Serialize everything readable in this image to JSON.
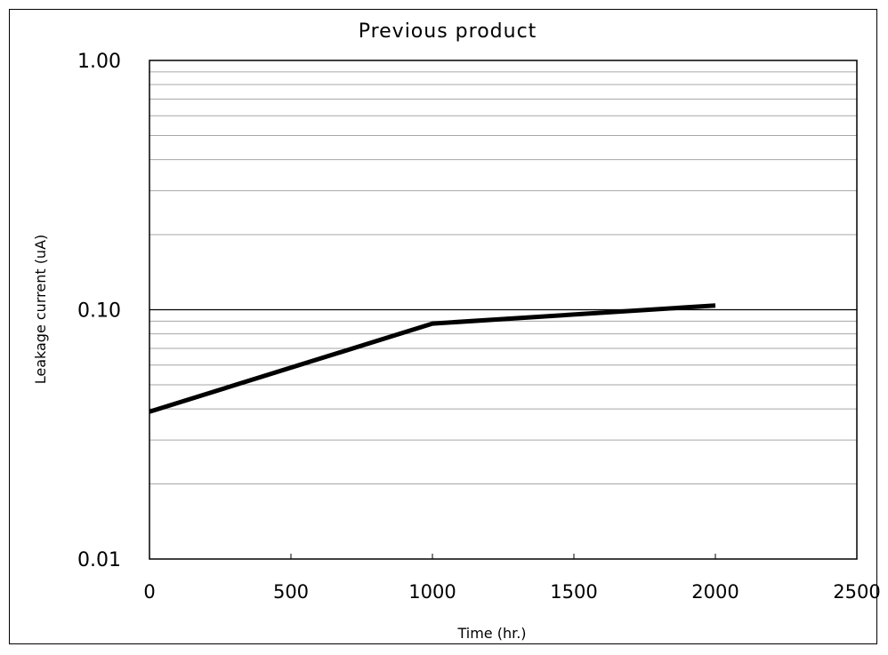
{
  "chart_data": {
    "type": "line",
    "title": "Previous product",
    "xlabel": "Time (hr.)",
    "ylabel": "Leakage current (uA)",
    "xlim": [
      0,
      2500
    ],
    "ylim": [
      0.01,
      1.0
    ],
    "y_scale": "log",
    "x_ticks": [
      0,
      500,
      1000,
      1500,
      2000,
      2500
    ],
    "x_tick_labels": [
      "0",
      "500",
      "1000",
      "1500",
      "2000",
      "2500"
    ],
    "y_ticks": [
      0.01,
      0.1,
      1.0
    ],
    "y_tick_labels": [
      "0.01",
      "0.10",
      "1.00"
    ],
    "grid": true,
    "series": [
      {
        "x": [
          0,
          1000,
          2000
        ],
        "y": [
          0.039,
          0.088,
          0.104
        ],
        "color": "#000000"
      }
    ]
  }
}
